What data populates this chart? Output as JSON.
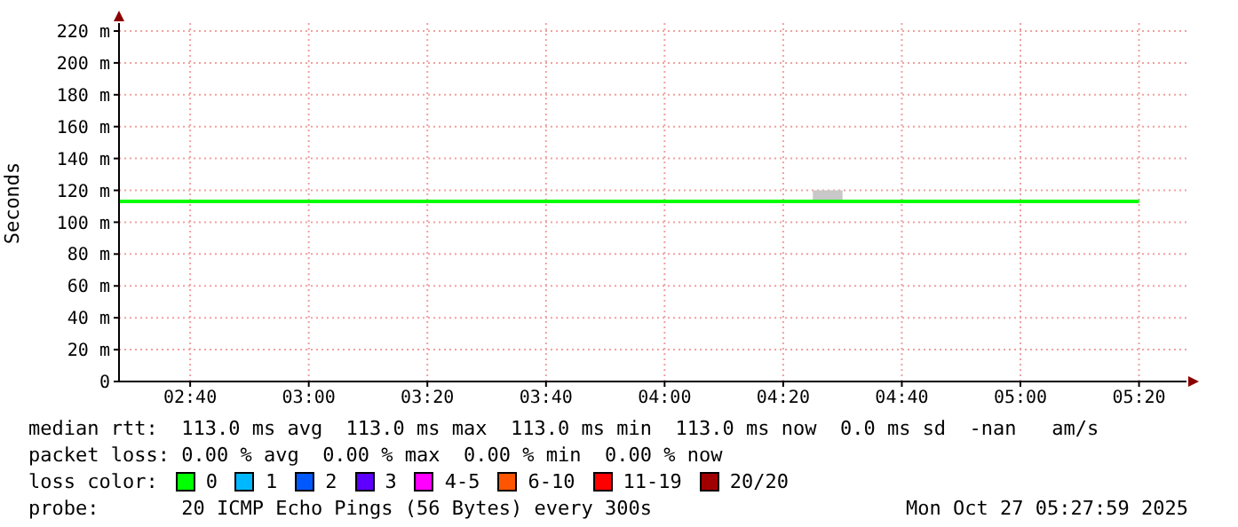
{
  "chart_data": {
    "type": "line",
    "ylabel": "Seconds",
    "legend_title": "loss color:",
    "legend": "bottom",
    "grid": true,
    "line_style": "solid",
    "marker": "none",
    "xlim": [
      2.4667,
      5.4667
    ],
    "xticks": [
      {
        "value": 2.6667,
        "label": "02:40"
      },
      {
        "value": 3,
        "label": "03:00"
      },
      {
        "value": 3.3333,
        "label": "03:20"
      },
      {
        "value": 3.6667,
        "label": "03:40"
      },
      {
        "value": 4,
        "label": "04:00"
      },
      {
        "value": 4.3333,
        "label": "04:20"
      },
      {
        "value": 4.6667,
        "label": "04:40"
      },
      {
        "value": 5,
        "label": "05:00"
      },
      {
        "value": 5.3333,
        "label": "05:20"
      }
    ],
    "ylim": [
      0,
      225
    ],
    "yticks": [
      0,
      {
        "value": 20,
        "label": "20 m"
      },
      {
        "value": 40,
        "label": "40 m"
      },
      {
        "value": 60,
        "label": "60 m"
      },
      {
        "value": 80,
        "label": "80 m"
      },
      {
        "value": 100,
        "label": "100 m"
      },
      {
        "value": 120,
        "label": "120 m"
      },
      {
        "value": 140,
        "label": "140 m"
      },
      {
        "value": 160,
        "label": "160 m"
      },
      {
        "value": 180,
        "label": "180 m"
      },
      {
        "value": 200,
        "label": "200 m"
      },
      {
        "value": 220,
        "label": "220 m"
      }
    ],
    "series": [
      {
        "name": "0",
        "color": "#00ff00",
        "x": [
          2.4667,
          4.3333,
          4.4167,
          4.5,
          5.3333
        ],
        "values": [
          113,
          113,
          113,
          113,
          113
        ],
        "lower": [
          null,
          113,
          113,
          113,
          null
        ],
        "upper": [
          null,
          114,
          120,
          120,
          null
        ]
      },
      {
        "name": "1",
        "color": "#00b8ff"
      },
      {
        "name": "2",
        "color": "#0059ff"
      },
      {
        "name": "3",
        "color": "#5e00ff"
      },
      {
        "name": "4-5",
        "color": "#ff00ff"
      },
      {
        "name": "6-10",
        "color": "#ff5500"
      },
      {
        "name": "11-19",
        "color": "#ff0000"
      },
      {
        "name": "20/20",
        "color": "#a10000"
      }
    ],
    "annotations": [
      "median rtt:  113.0 ms avg  113.0 ms max  113.0 ms min  113.0 ms now  0.0 ms sd  -nan   am/s",
      "packet loss: 0.00 % avg  0.00 % max  0.00 % min  0.00 % now",
      "probe:       20 ICMP Echo Pings (56 Bytes) every 300s",
      "Mon Oct 27 05:27:59 2025"
    ]
  }
}
